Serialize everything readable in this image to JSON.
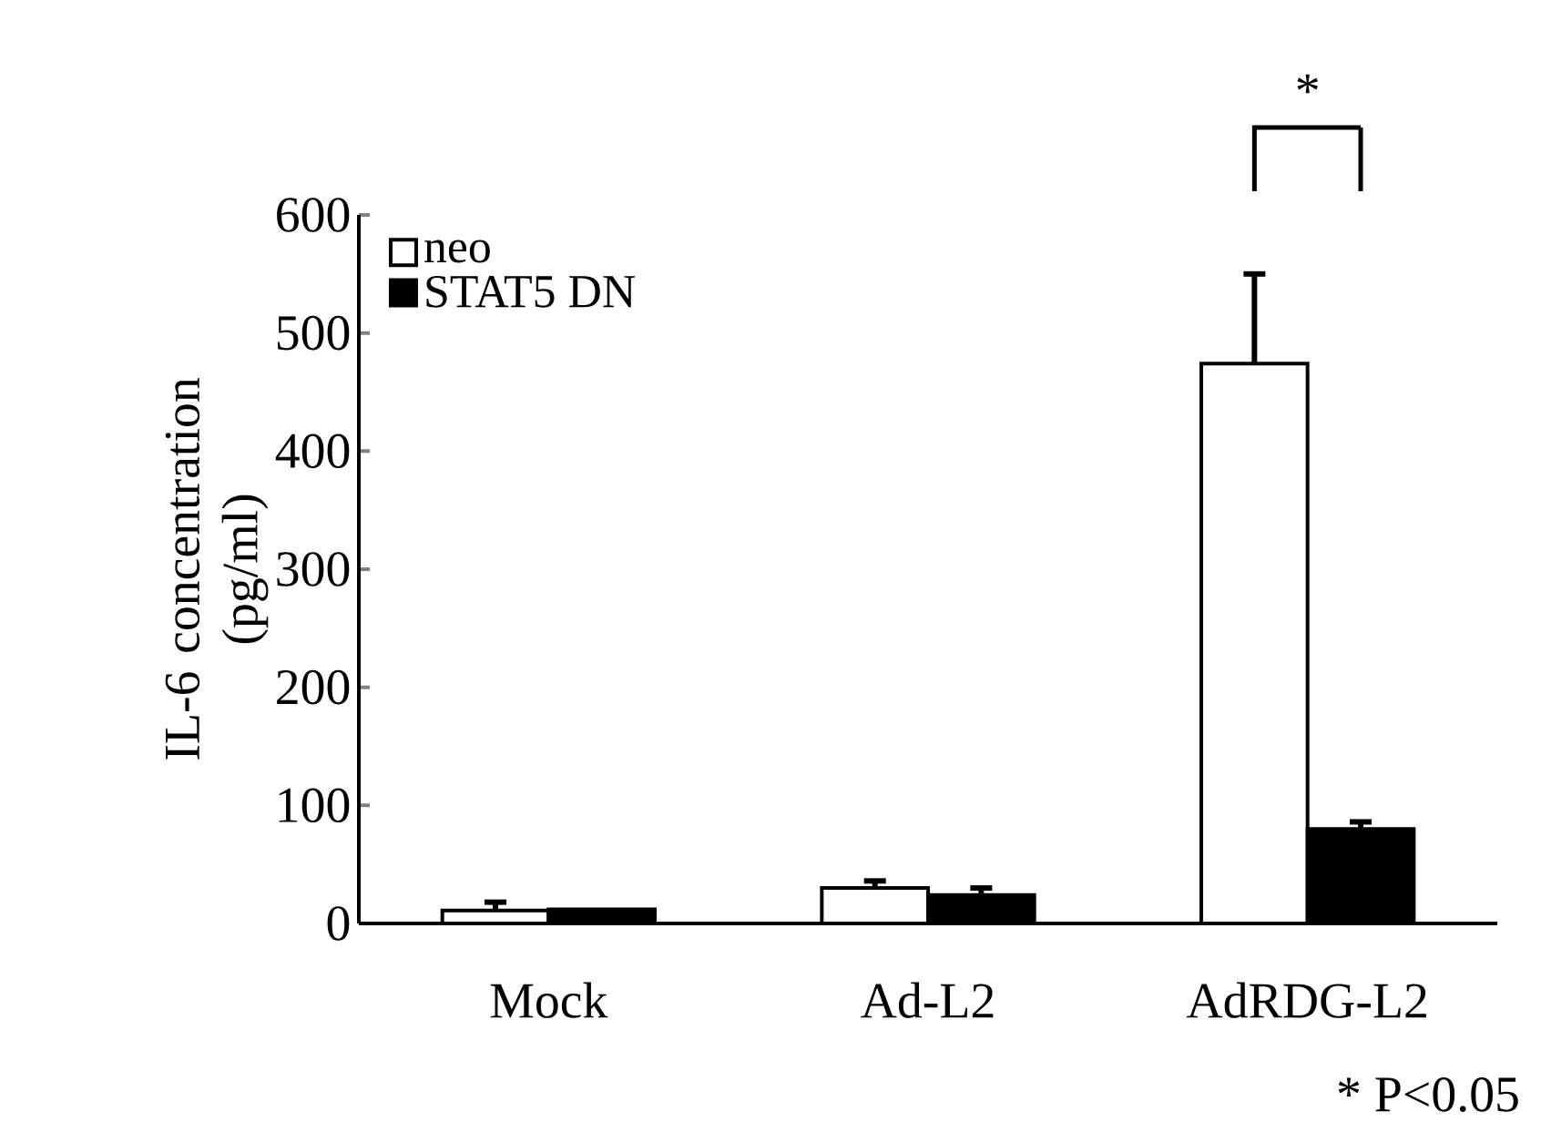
{
  "chart_data": {
    "type": "bar",
    "ylabel": "IL-6 concentration (pg/ml)",
    "categories": [
      "Mock",
      "Ad-L2",
      "AdRDG-L2"
    ],
    "series": [
      {
        "name": "neo",
        "color": "#ffffff",
        "values": [
          11,
          30,
          474
        ],
        "errors": [
          7,
          6,
          76
        ]
      },
      {
        "name": "STAT5 DN",
        "color": "#000000",
        "values": [
          12,
          24,
          80
        ],
        "errors": [
          null,
          6,
          6
        ]
      }
    ],
    "ylim": [
      0,
      600
    ],
    "yticks": [
      0,
      100,
      200,
      300,
      400,
      500,
      600
    ],
    "legend": "top left",
    "grid": false,
    "annotations": [
      "*",
      "* P<0.05"
    ]
  }
}
